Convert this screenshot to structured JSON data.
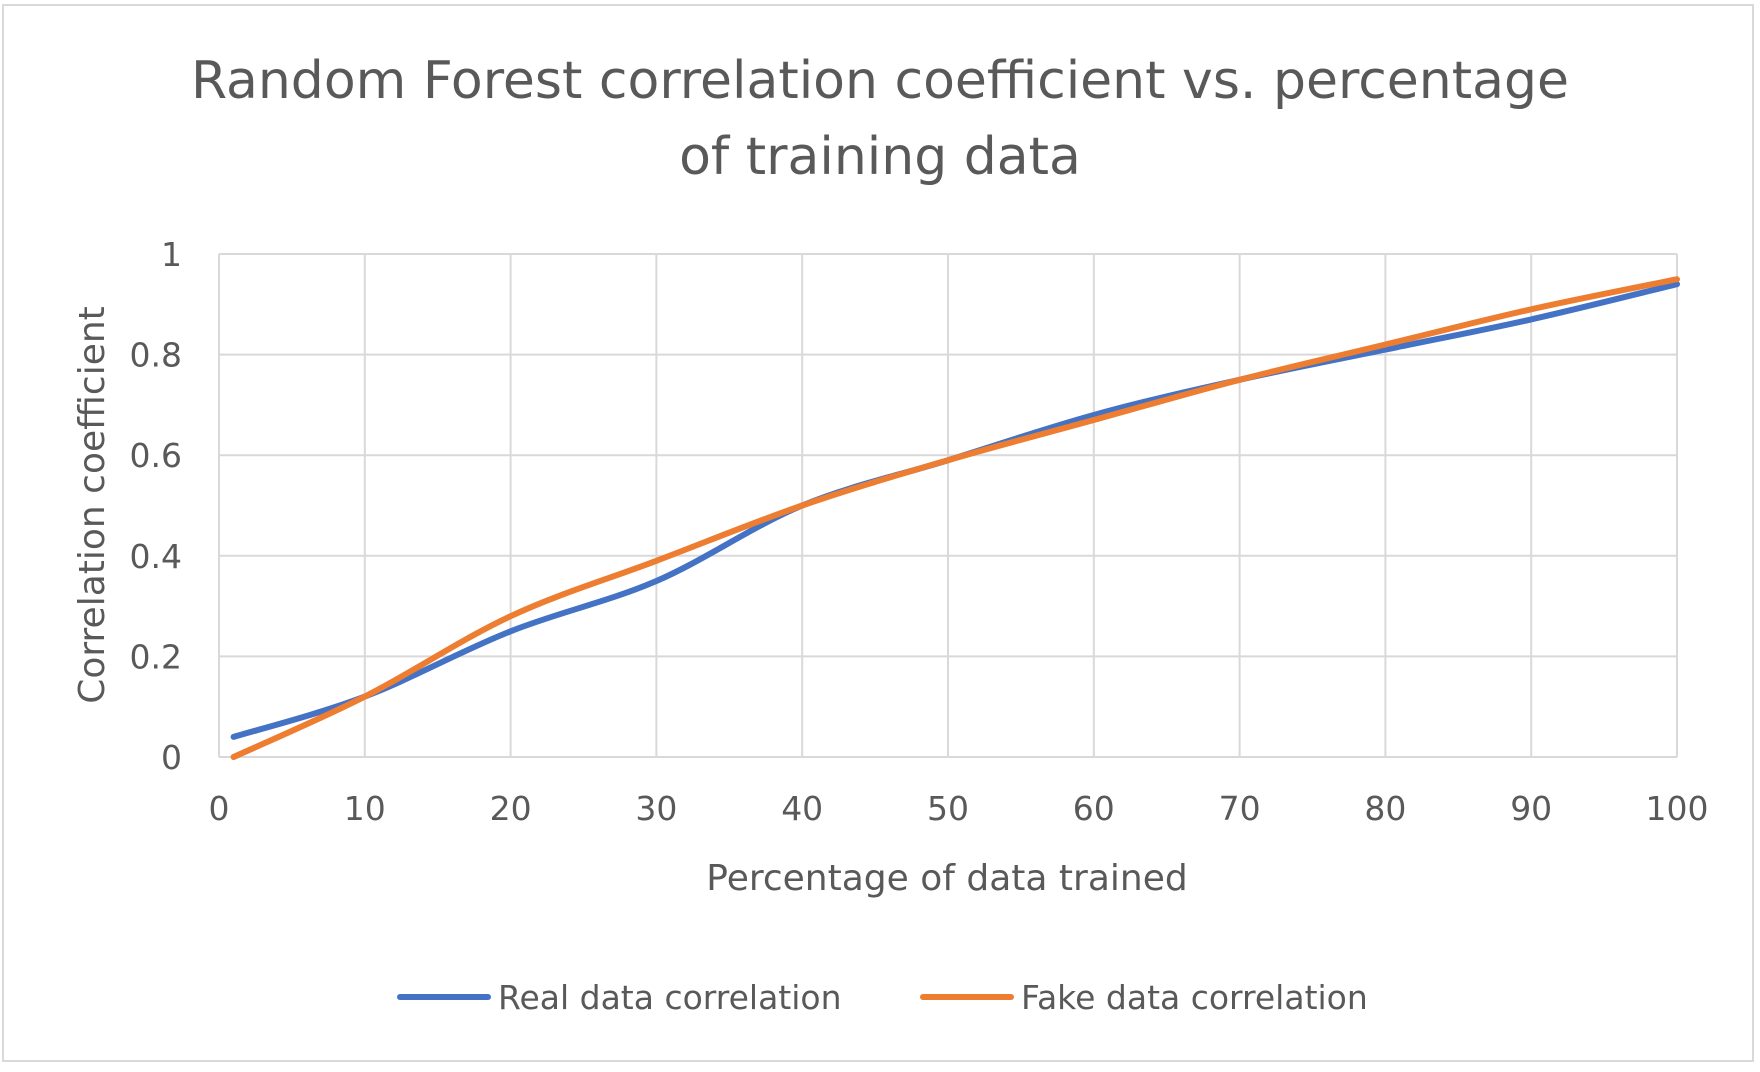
{
  "chart_data": {
    "type": "line",
    "title": "Random Forest correlation coefficient vs. percentage of training data",
    "title_lines": [
      "Random Forest correlation coefficient vs. percentage",
      "of training data"
    ],
    "xlabel": "Percentage of data trained",
    "ylabel": "Correlation coefficient",
    "xlim": [
      0,
      100
    ],
    "ylim": [
      0,
      1
    ],
    "x_ticks": [
      0,
      10,
      20,
      30,
      40,
      50,
      60,
      70,
      80,
      90,
      100
    ],
    "y_ticks": [
      0,
      0.2,
      0.4,
      0.6,
      0.8,
      1
    ],
    "y_tick_labels": [
      "0",
      "0.2",
      "0.4",
      "0.6",
      "0.8",
      "1"
    ],
    "grid": true,
    "legend_position": "bottom",
    "series": [
      {
        "name": "Real data correlation",
        "color": "#4472c4",
        "x": [
          1,
          10,
          20,
          30,
          40,
          50,
          60,
          70,
          80,
          90,
          100
        ],
        "y": [
          0.04,
          0.12,
          0.25,
          0.35,
          0.5,
          0.59,
          0.68,
          0.75,
          0.81,
          0.87,
          0.94
        ]
      },
      {
        "name": "Fake data correlation",
        "color": "#ed7d31",
        "x": [
          1,
          10,
          20,
          30,
          40,
          50,
          60,
          70,
          80,
          90,
          100
        ],
        "y": [
          0.0,
          0.12,
          0.28,
          0.39,
          0.5,
          0.59,
          0.67,
          0.75,
          0.82,
          0.89,
          0.95
        ]
      }
    ]
  }
}
